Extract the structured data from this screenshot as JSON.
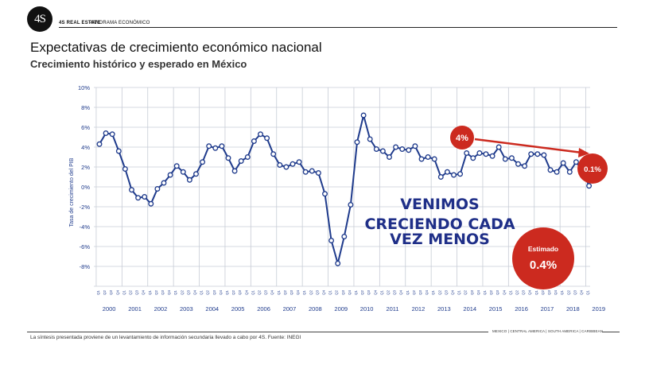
{
  "header": {
    "logo_text": "4S",
    "brand": "4S REAL ESTATE",
    "section": "PANORAMA ECONÓMICO"
  },
  "title": "Expectativas de crecimiento económico nacional",
  "subtitle": "Crecimiento histórico y esperado en México",
  "chart_data": {
    "type": "line",
    "ylabel": "Tasa de crecimiento del PIB",
    "ylim": [
      -10,
      10
    ],
    "yticks": [
      "10%",
      "8%",
      "6%",
      "4%",
      "2%",
      "0%",
      "-2%",
      "-4%",
      "-6%",
      "-8%"
    ],
    "grid": true,
    "years": [
      "2000",
      "2001",
      "2002",
      "2003",
      "2004",
      "2005",
      "2006",
      "2007",
      "2008",
      "2009",
      "2010",
      "2011",
      "2012",
      "2013",
      "2014",
      "2015",
      "2016",
      "2017",
      "2018",
      "2019"
    ],
    "quarter_labels": [
      "Q1",
      "Q2",
      "Q3",
      "Q4"
    ],
    "series": [
      {
        "values": [
          4.3,
          5.4,
          5.3,
          3.6,
          1.8,
          -0.3,
          -1.1,
          -1.0,
          -1.7,
          -0.2,
          0.4,
          1.2,
          2.1,
          1.5,
          0.7,
          1.3,
          2.5,
          4.1,
          3.9,
          4.1,
          2.9,
          1.6,
          2.6,
          3.0,
          4.6,
          5.3,
          4.9,
          3.3,
          2.2,
          2.0,
          2.3,
          2.5,
          1.5,
          1.6,
          1.4,
          -0.7,
          -5.4,
          -7.7,
          -5.0,
          -1.8,
          4.5,
          7.2,
          4.8,
          3.8,
          3.6,
          3.0,
          4.0,
          3.8,
          3.7,
          4.1,
          2.8,
          3.0,
          2.8,
          1.0,
          1.5,
          1.2,
          1.3,
          3.4,
          2.9,
          3.4,
          3.3,
          3.1,
          4.0,
          2.8,
          2.9,
          2.3,
          2.1,
          3.3,
          3.3,
          3.2,
          1.7,
          1.5,
          2.4,
          1.5,
          2.5,
          1.6,
          0.1
        ]
      }
    ],
    "start_year": 2000,
    "annotations": {
      "start_value": "4%",
      "end_value": "0.1%",
      "message_lines": [
        "VENIMOS",
        "CRECIENDO CADA",
        "VEZ MENOS"
      ],
      "estimate_label": "Estimado",
      "estimate_value": "0.4%"
    }
  },
  "colors": {
    "line": "#1f3b8c",
    "marker_fill": "#ffffff",
    "grid": "#c7ccd6",
    "axis_text": "#1f3b8c",
    "accent_red": "#cc2a1f",
    "message": "#1f2f88"
  },
  "footer": {
    "note": "La síntesis presentada proviene de un levantamiento de información secundaria llevado a cabo por 4S. Fuente: INEGI",
    "regions": "MEXICO | CENTRAL AMERICA | SOUTH AMERICA | CARIBBEAN"
  }
}
